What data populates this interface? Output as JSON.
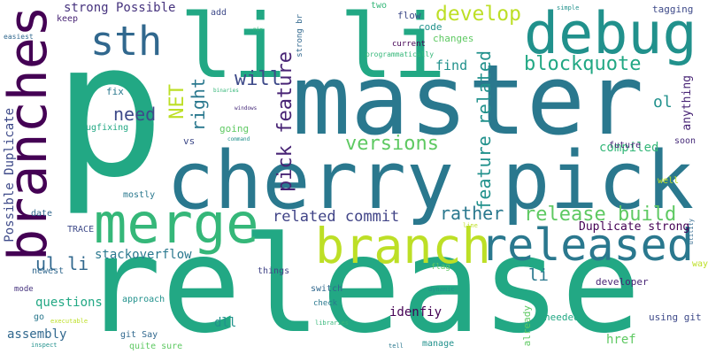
{
  "words": [
    {
      "text": "p",
      "color": "#22a884"
    },
    {
      "text": "master",
      "color": "#2a788e"
    },
    {
      "text": "release",
      "color": "#22a884"
    },
    {
      "text": "cherry pick",
      "color": "#2a788e"
    },
    {
      "text": "branches",
      "color": "#440154"
    },
    {
      "text": "debug",
      "color": "#21918c"
    },
    {
      "text": "li li",
      "color": "#22a884"
    },
    {
      "text": "sth",
      "color": "#31688e"
    },
    {
      "text": "merge",
      "color": "#35b779"
    },
    {
      "text": "branch",
      "color": "#bddf26"
    },
    {
      "text": "released",
      "color": "#2a788e"
    },
    {
      "text": "pick feature",
      "color": "#482475"
    },
    {
      "text": "feature related",
      "color": "#21918c"
    },
    {
      "text": "blockquote",
      "color": "#22a884"
    },
    {
      "text": "develop",
      "color": "#bddf26"
    },
    {
      "text": "release build",
      "color": "#5ec962"
    },
    {
      "text": "related commit",
      "color": "#414487"
    },
    {
      "text": "rather",
      "color": "#2a788e"
    },
    {
      "text": "versions",
      "color": "#5ec962"
    },
    {
      "text": "will",
      "color": "#3e4a89"
    },
    {
      "text": "need",
      "color": "#3e4a89"
    },
    {
      "text": "right",
      "color": "#2a788e"
    },
    {
      "text": "NET",
      "color": "#bddf26"
    },
    {
      "text": "ul li",
      "color": "#31688e"
    },
    {
      "text": "Possible Duplicate",
      "color": "#3e4a89"
    },
    {
      "text": "Duplicate strong",
      "color": "#440154"
    },
    {
      "text": "stackoverflow",
      "color": "#2a788e"
    },
    {
      "text": "strong Possible",
      "color": "#46337e"
    },
    {
      "text": "compiled",
      "color": "#35b779"
    },
    {
      "text": "ol",
      "color": "#21918c"
    },
    {
      "text": "anything",
      "color": "#482475"
    },
    {
      "text": "find",
      "color": "#21918c"
    },
    {
      "text": "li",
      "color": "#2a788e"
    },
    {
      "text": "href",
      "color": "#5ec962"
    },
    {
      "text": "questions",
      "color": "#22a884"
    },
    {
      "text": "assembly",
      "color": "#31688e"
    },
    {
      "text": "idenfiy",
      "color": "#440154"
    },
    {
      "text": "dll",
      "color": "#21918c"
    },
    {
      "text": "bugfixing",
      "color": "#22a884"
    },
    {
      "text": "fix",
      "color": "#2a788e"
    },
    {
      "text": "going",
      "color": "#5ec962"
    },
    {
      "text": "vs",
      "color": "#3e4a89"
    },
    {
      "text": "flow",
      "color": "#3e4a89"
    },
    {
      "text": "code",
      "color": "#21918c"
    },
    {
      "text": "changes",
      "color": "#5ec962"
    },
    {
      "text": "current",
      "color": "#440154"
    },
    {
      "text": "programmatically",
      "color": "#35b779"
    },
    {
      "text": "strong br",
      "color": "#31688e"
    },
    {
      "text": "add",
      "color": "#3e4a89"
    },
    {
      "text": "keep",
      "color": "#482475"
    },
    {
      "text": "easiest",
      "color": "#31688e"
    },
    {
      "text": "two",
      "color": "#35b779"
    },
    {
      "text": "simple",
      "color": "#21918c"
    },
    {
      "text": "tagging",
      "color": "#3e4a89"
    },
    {
      "text": "future",
      "color": "#482475"
    },
    {
      "text": "soon",
      "color": "#472c7a"
    },
    {
      "text": "well",
      "color": "#bddf26"
    },
    {
      "text": "utility",
      "color": "#31688e"
    },
    {
      "text": "way",
      "color": "#bddf26"
    },
    {
      "text": "mostly",
      "color": "#2a788e"
    },
    {
      "text": "date",
      "color": "#31688e"
    },
    {
      "text": "TRACE",
      "color": "#3e4a89"
    },
    {
      "text": "newest",
      "color": "#31688e"
    },
    {
      "text": "mode",
      "color": "#46337e"
    },
    {
      "text": "go",
      "color": "#2a788e"
    },
    {
      "text": "approach",
      "color": "#21918c"
    },
    {
      "text": "git Say",
      "color": "#31688e"
    },
    {
      "text": "quite sure",
      "color": "#5ec962"
    },
    {
      "text": "things",
      "color": "#414487"
    },
    {
      "text": "switch",
      "color": "#31688e"
    },
    {
      "text": "check",
      "color": "#2a788e"
    },
    {
      "text": "libraries",
      "color": "#35b779"
    },
    {
      "text": "flag",
      "color": "#5ec962"
    },
    {
      "text": "dynamic",
      "color": "#21918c"
    },
    {
      "text": "line",
      "color": "#bddf26"
    },
    {
      "text": "manage",
      "color": "#21918c"
    },
    {
      "text": "tell",
      "color": "#2a788e"
    },
    {
      "text": "already",
      "color": "#5ec962"
    },
    {
      "text": "needed",
      "color": "#22a884"
    },
    {
      "text": "developer",
      "color": "#482475"
    },
    {
      "text": "using git",
      "color": "#3e4a89"
    },
    {
      "text": "executable",
      "color": "#bddf26"
    },
    {
      "text": "inspect",
      "color": "#21918c"
    },
    {
      "text": "nix",
      "color": "#35b779"
    },
    {
      "text": "binaries",
      "color": "#35b779"
    },
    {
      "text": "windows",
      "color": "#472c7a"
    },
    {
      "text": "command",
      "color": "#21918c"
    }
  ]
}
